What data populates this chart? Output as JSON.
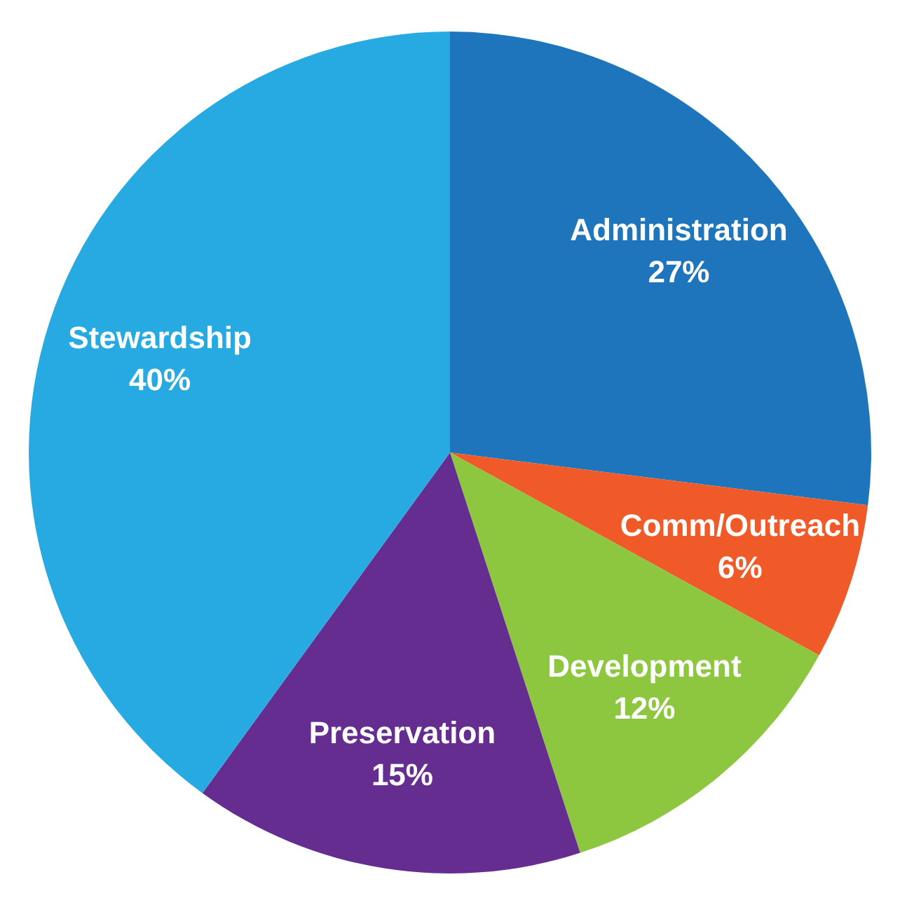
{
  "chart_data": {
    "type": "pie",
    "categories": [
      "Administration",
      "Comm/Outreach",
      "Development",
      "Preservation",
      "Stewardship"
    ],
    "values": [
      27,
      6,
      12,
      15,
      40
    ],
    "colors": [
      "#1f75bb",
      "#f05a28",
      "#8dc63f",
      "#662d91",
      "#27aae1"
    ],
    "value_labels": [
      "27%",
      "6%",
      "12%",
      "15%",
      "40%"
    ]
  }
}
